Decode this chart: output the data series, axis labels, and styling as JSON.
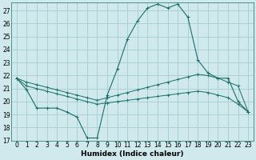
{
  "xlabel": "Humidex (Indice chaleur)",
  "ylabel": "",
  "background_color": "#cfe9ec",
  "grid_color": "#aad0d5",
  "line_color": "#1a6e6a",
  "xlim": [
    -0.5,
    23.5
  ],
  "ylim": [
    17,
    27.6
  ],
  "yticks": [
    17,
    18,
    19,
    20,
    21,
    22,
    23,
    24,
    25,
    26,
    27
  ],
  "xticks": [
    0,
    1,
    2,
    3,
    4,
    5,
    6,
    7,
    8,
    9,
    10,
    11,
    12,
    13,
    14,
    15,
    16,
    17,
    18,
    19,
    20,
    21,
    22,
    23
  ],
  "series1_x": [
    0,
    1,
    2,
    3,
    4,
    5,
    6,
    7,
    8,
    9,
    10,
    11,
    12,
    13,
    14,
    15,
    16,
    17,
    18,
    19,
    20,
    21,
    22,
    23
  ],
  "series1_y": [
    21.8,
    20.9,
    19.5,
    19.5,
    19.5,
    19.2,
    18.8,
    17.2,
    17.2,
    20.5,
    22.5,
    24.8,
    26.2,
    27.2,
    27.5,
    27.2,
    27.5,
    26.5,
    23.2,
    22.2,
    21.8,
    21.8,
    20.0,
    19.2
  ],
  "series2_x": [
    0,
    1,
    2,
    3,
    4,
    5,
    6,
    7,
    8,
    9,
    10,
    11,
    12,
    13,
    14,
    15,
    16,
    17,
    18,
    19,
    20,
    21,
    22,
    23
  ],
  "series2_y": [
    21.8,
    21.5,
    21.3,
    21.1,
    20.9,
    20.7,
    20.5,
    20.3,
    20.1,
    20.3,
    20.5,
    20.7,
    20.9,
    21.1,
    21.3,
    21.5,
    21.7,
    21.9,
    22.1,
    22.0,
    21.8,
    21.5,
    21.2,
    19.2
  ],
  "series3_x": [
    0,
    1,
    2,
    3,
    4,
    5,
    6,
    7,
    8,
    9,
    10,
    11,
    12,
    13,
    14,
    15,
    16,
    17,
    18,
    19,
    20,
    21,
    22,
    23
  ],
  "series3_y": [
    21.8,
    21.2,
    21.0,
    20.8,
    20.6,
    20.4,
    20.2,
    20.0,
    19.8,
    19.9,
    20.0,
    20.1,
    20.2,
    20.3,
    20.4,
    20.5,
    20.6,
    20.7,
    20.8,
    20.7,
    20.5,
    20.3,
    19.8,
    19.2
  ],
  "fontsize_ticks": 5.5,
  "fontsize_label": 6.5
}
